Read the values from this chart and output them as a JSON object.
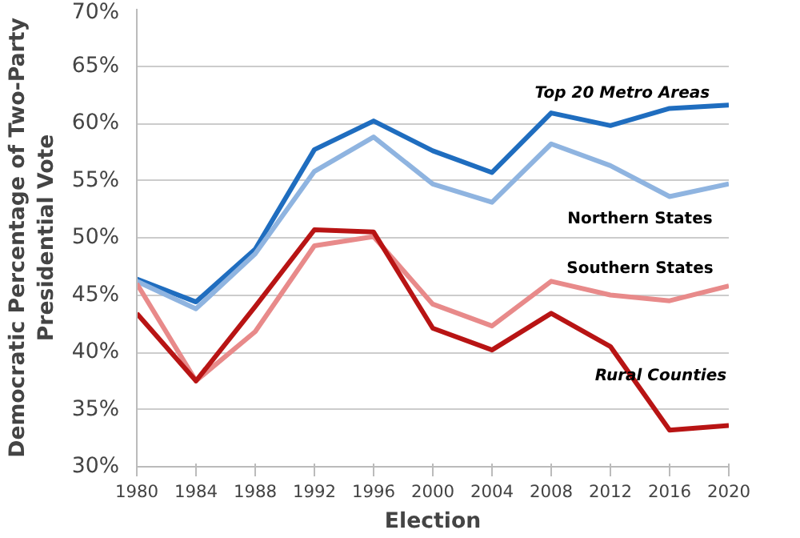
{
  "chart_data": {
    "type": "line",
    "xlabel": "Election",
    "ylabel": "Democratic Percentage of Two-Party Presidential Vote",
    "x": [
      1980,
      1984,
      1988,
      1992,
      1996,
      2000,
      2004,
      2008,
      2012,
      2016,
      2020
    ],
    "xlim": [
      1980,
      2020
    ],
    "xticks": [
      1980,
      1984,
      1988,
      1992,
      1996,
      2000,
      2004,
      2008,
      2012,
      2016,
      2020
    ],
    "ylim": [
      30,
      70
    ],
    "yticks": [
      {
        "value": 30,
        "label": "30%"
      },
      {
        "value": 35,
        "label": "35%"
      },
      {
        "value": 40,
        "label": "40%"
      },
      {
        "value": 45,
        "label": "45%"
      },
      {
        "value": 50,
        "label": "50%"
      },
      {
        "value": 55,
        "label": "55%"
      },
      {
        "value": 60,
        "label": "60%"
      },
      {
        "value": 65,
        "label": "65%"
      },
      {
        "value": 70,
        "label": "70%"
      }
    ],
    "grid": "y",
    "legend": false,
    "marker": "none",
    "line_style": "solid",
    "series": [
      {
        "name": "Top 20 Metro Areas",
        "color": "#1f6dbf",
        "values": [
          46.4,
          44.4,
          49.0,
          57.7,
          60.2,
          57.6,
          55.7,
          60.9,
          59.8,
          61.3,
          61.6
        ]
      },
      {
        "name": "Northern States",
        "color": "#8fb4e0",
        "values": [
          46.2,
          43.8,
          48.6,
          55.8,
          58.8,
          54.7,
          53.1,
          58.2,
          56.3,
          53.6,
          54.7
        ]
      },
      {
        "name": "Southern States",
        "color": "#e88a8a",
        "values": [
          46.0,
          37.5,
          41.8,
          49.3,
          50.1,
          44.2,
          42.3,
          46.2,
          45.0,
          44.5,
          45.8
        ]
      },
      {
        "name": "Rural Counties",
        "color": "#b81414",
        "values": [
          43.4,
          37.5,
          44.0,
          50.7,
          50.5,
          42.1,
          40.2,
          43.4,
          40.5,
          33.2,
          33.6
        ]
      }
    ]
  }
}
